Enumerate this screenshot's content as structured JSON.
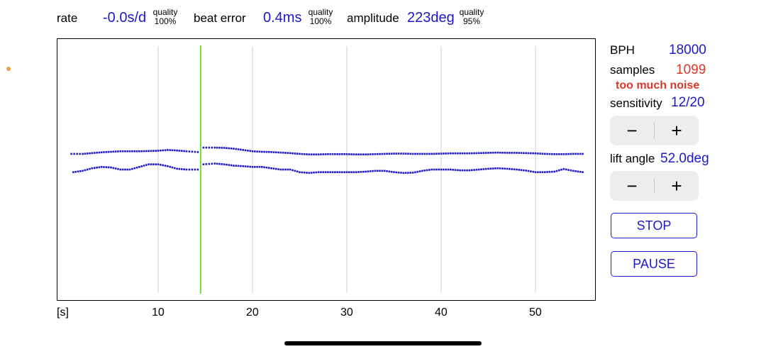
{
  "header": {
    "rate_label": "rate",
    "rate_value": "-0.0s/d",
    "rate_quality_label": "quality",
    "rate_quality_value": "100%",
    "beat_error_label": "beat error",
    "beat_error_value": "0.4ms",
    "beat_error_quality_label": "quality",
    "beat_error_quality_value": "100%",
    "amplitude_label": "amplitude",
    "amplitude_value": "223deg",
    "amplitude_quality_label": "quality",
    "amplitude_quality_value": "95%"
  },
  "side": {
    "bph_label": "BPH",
    "bph_value": "18000",
    "samples_label": "samples",
    "samples_value": "1099",
    "warning": "too much noise",
    "sensitivity_label": "sensitivity",
    "sensitivity_value": "12/20",
    "minus": "−",
    "plus": "+",
    "lift_angle_label": "lift angle",
    "lift_angle_value": "52.0deg",
    "stop_label": "STOP",
    "pause_label": "PAUSE"
  },
  "colors": {
    "value_blue": "#1d18c8",
    "warning_red": "#d7392a",
    "marker_green": "#6fdc3a",
    "grid_gray": "#d9d9d9"
  },
  "chart_data": {
    "type": "scatter",
    "x_unit_label": "[s]",
    "xlim": [
      0,
      55
    ],
    "x_ticks": [
      10,
      20,
      30,
      40,
      50
    ],
    "marker_x": 14.5,
    "ylim": [
      0,
      1
    ],
    "grid": true,
    "series": [
      {
        "color": "#1d18c8",
        "segments": [
          {
            "x": [
              0.8,
              2,
              3,
              4,
              5,
              6,
              7,
              8,
              9,
              10,
              11,
              12,
              13,
              14.2
            ],
            "y": [
              0.44,
              0.44,
              0.437,
              0.434,
              0.432,
              0.43,
              0.43,
              0.43,
              0.429,
              0.428,
              0.425,
              0.427,
              0.43,
              0.433
            ]
          },
          {
            "x": [
              14.8,
              16,
              17,
              18,
              19,
              20,
              21,
              22,
              23,
              24,
              25,
              26,
              27,
              28,
              29,
              30,
              31,
              32,
              33,
              34,
              35,
              36,
              37,
              38,
              39,
              40,
              41,
              42,
              43,
              44,
              45,
              46,
              47,
              48,
              49,
              50,
              51,
              52,
              53,
              54,
              55
            ],
            "y": [
              0.416,
              0.416,
              0.417,
              0.42,
              0.425,
              0.43,
              0.432,
              0.433,
              0.435,
              0.437,
              0.44,
              0.442,
              0.442,
              0.441,
              0.441,
              0.441,
              0.442,
              0.442,
              0.441,
              0.44,
              0.439,
              0.439,
              0.44,
              0.44,
              0.44,
              0.439,
              0.438,
              0.438,
              0.438,
              0.437,
              0.436,
              0.435,
              0.436,
              0.436,
              0.437,
              0.438,
              0.44,
              0.441,
              0.441,
              0.44,
              0.44
            ]
          }
        ]
      },
      {
        "color": "#1d18c8",
        "segments": [
          {
            "x": [
              1,
              2,
              3,
              4,
              5,
              6,
              7,
              8,
              9,
              10,
              11,
              12,
              13,
              14.2
            ],
            "y": [
              0.51,
              0.505,
              0.495,
              0.49,
              0.492,
              0.5,
              0.5,
              0.49,
              0.48,
              0.48,
              0.487,
              0.497,
              0.5,
              0.5
            ]
          },
          {
            "x": [
              14.8,
              16,
              17,
              18,
              19,
              20,
              21,
              22,
              23,
              24,
              25,
              26,
              27,
              28,
              29,
              30,
              31,
              32,
              33,
              34,
              35,
              36,
              37,
              38,
              39,
              40,
              41,
              42,
              43,
              44,
              45,
              46,
              47,
              48,
              49,
              50,
              51,
              52,
              53,
              54,
              55
            ],
            "y": [
              0.48,
              0.477,
              0.48,
              0.485,
              0.487,
              0.49,
              0.49,
              0.495,
              0.5,
              0.5,
              0.51,
              0.513,
              0.51,
              0.51,
              0.51,
              0.51,
              0.51,
              0.508,
              0.505,
              0.505,
              0.51,
              0.513,
              0.512,
              0.505,
              0.5,
              0.5,
              0.5,
              0.503,
              0.503,
              0.5,
              0.497,
              0.495,
              0.497,
              0.5,
              0.504,
              0.51,
              0.51,
              0.508,
              0.498,
              0.505,
              0.51
            ]
          }
        ]
      }
    ]
  }
}
